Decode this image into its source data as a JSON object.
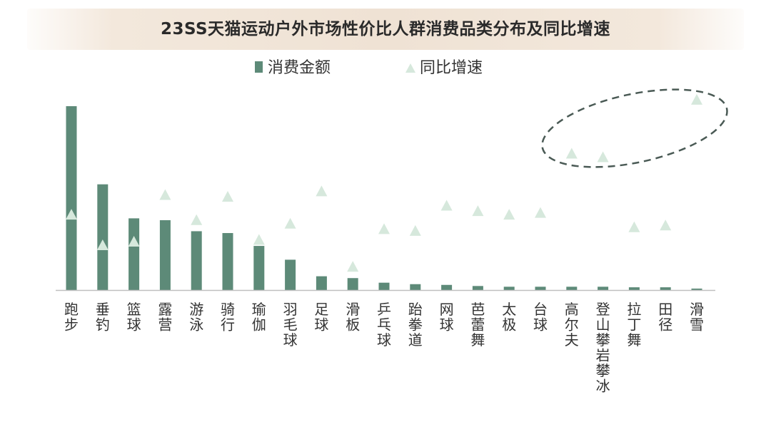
{
  "chart_data": {
    "type": "bar",
    "title": "23SS天猫运动户外市场性价比人群消费品类分布及同比增速",
    "categories": [
      "跑步",
      "垂钓",
      "篮球",
      "露营",
      "游泳",
      "骑行",
      "瑜伽",
      "羽毛球",
      "足球",
      "滑板",
      "乒乓球",
      "跆拳道",
      "网球",
      "芭蕾舞",
      "太极",
      "台球",
      "高尔夫",
      "登山攀岩攀冰",
      "拉丁舞",
      "田径",
      "滑雪"
    ],
    "series": [
      {
        "name": "消费金额",
        "type": "bar",
        "color": "#5d8a78",
        "values": [
          100,
          57.5,
          39,
          38,
          32,
          31,
          24,
          16.5,
          7.5,
          6.5,
          4,
          3.2,
          2.8,
          2.2,
          1.8,
          1.8,
          1.8,
          1.8,
          1.5,
          1.5,
          0.8
        ]
      },
      {
        "name": "同比增速",
        "type": "scatter",
        "marker": "triangle",
        "color": "#d6e8dc",
        "values": [
          42,
          25,
          27,
          53,
          39,
          52,
          28,
          37,
          55,
          13,
          34,
          33,
          47,
          44,
          42,
          43,
          76,
          74,
          35,
          36,
          106
        ]
      }
    ],
    "legend_position": "top-center",
    "grid": false,
    "y_axis_visible": false,
    "annotation": "dashed ellipse highlighting 高尔夫, 登山攀岩攀冰, 滑雪"
  }
}
